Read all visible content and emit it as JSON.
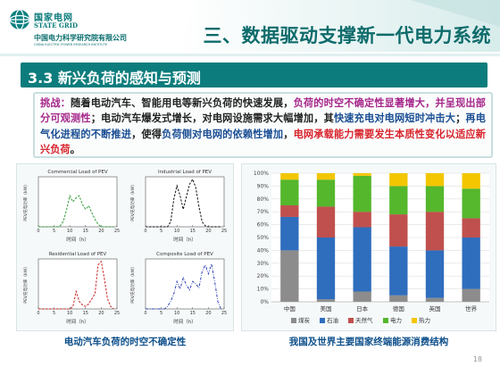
{
  "logo": {
    "cn": "国家电网",
    "en": "STATE GRID",
    "org": "中国电力科学研究院有限公司",
    "org_en": "CHINA ELECTRIC POWER RESEARCH INSTITUTE"
  },
  "header": {
    "title": "三、数据驱动支撑新一代电力系统"
  },
  "section": {
    "title": "3.3 新兴负荷的感知与预测"
  },
  "challenge": {
    "label": "挑战：",
    "p1": "随着电动汽车、智能用电等新兴负荷的快速发展，",
    "p2": "负荷的时空不确定性显著增大，并呈现出部分可观测性",
    "p3": "；电动汽车爆发式增长，对电网设施需求大幅增加，其",
    "p4": "快速充电对电网短时冲击大",
    "p5": "；",
    "p6": "再电气化进程的不断推进",
    "p7": "，使得",
    "p8": "负荷侧对电网的依赖性增加",
    "p9": "，",
    "p10": "电网承载能力需要发生本质性变化以适应新兴负荷",
    "p11": "。"
  },
  "captions": {
    "left": "电动汽车负荷的时空不确定性",
    "right": "我国及世界主要国家终端能源消费结构"
  },
  "page_number": "18",
  "chart_data": [
    {
      "type": "line",
      "title": "Commercial Load of PEV",
      "xlabel": "时间（h）",
      "ylabel": "PEV充电功率（kW）",
      "xticks": [
        "0",
        "5",
        "10",
        "15",
        "20",
        "25"
      ],
      "xlim": [
        0,
        25
      ],
      "ylim": [
        0,
        1
      ],
      "color": "#2f9a36",
      "style": "dash",
      "x": [
        0,
        1,
        2,
        3,
        4,
        5,
        6,
        7,
        8,
        9,
        10,
        11,
        12,
        13,
        14,
        15,
        16,
        17,
        18,
        19,
        20,
        21,
        22,
        23,
        24
      ],
      "values": [
        0,
        0,
        0,
        0,
        0,
        0,
        0,
        0.02,
        0.12,
        0.35,
        0.62,
        0.5,
        0.58,
        0.62,
        0.45,
        0.35,
        0.42,
        0.28,
        0.15,
        0.05,
        0,
        0,
        0,
        0,
        0
      ]
    },
    {
      "type": "line",
      "title": "Industrial Load of PEV",
      "xlabel": "时间（h）",
      "ylabel": "PEV充电功率（kW）",
      "xticks": [
        "0",
        "5",
        "10",
        "15",
        "20",
        "25"
      ],
      "xlim": [
        0,
        25
      ],
      "ylim": [
        0,
        1
      ],
      "color": "#111111",
      "style": "dash",
      "x": [
        0,
        1,
        2,
        3,
        4,
        5,
        6,
        7,
        8,
        9,
        10,
        11,
        12,
        13,
        14,
        15,
        16,
        17,
        18,
        19,
        20,
        21,
        22,
        23,
        24
      ],
      "values": [
        0,
        0,
        0,
        0,
        0,
        0,
        0,
        0,
        0.1,
        0.55,
        0.82,
        0.62,
        0.35,
        0.6,
        0.85,
        0.95,
        0.78,
        0.4,
        0.1,
        0.02,
        0,
        0,
        0,
        0,
        0
      ]
    },
    {
      "type": "line",
      "title": "Residential Load of PEV",
      "xlabel": "时间（h）",
      "ylabel": "PEV充电功率（kW）",
      "xticks": [
        "0",
        "5",
        "10",
        "15",
        "20",
        "25"
      ],
      "xlim": [
        0,
        25
      ],
      "ylim": [
        0,
        1
      ],
      "color": "#c72828",
      "style": "dash",
      "x": [
        0,
        1,
        2,
        3,
        4,
        5,
        6,
        7,
        8,
        9,
        10,
        11,
        12,
        13,
        14,
        15,
        16,
        17,
        18,
        19,
        20,
        21,
        22,
        23,
        24
      ],
      "values": [
        0,
        0,
        0,
        0,
        0,
        0,
        0,
        0,
        0,
        0,
        0,
        0.05,
        0.35,
        0.15,
        0.08,
        0.05,
        0.1,
        0.2,
        0.3,
        0.88,
        0.95,
        0.6,
        0.2,
        0.05,
        0
      ]
    },
    {
      "type": "line",
      "title": "Composite Load of PEV",
      "xlabel": "时间（h）",
      "ylabel": "PEV充电功率（kW）",
      "xticks": [
        "0",
        "5",
        "10",
        "15",
        "20",
        "25"
      ],
      "xlim": [
        0,
        25
      ],
      "ylim": [
        0,
        1
      ],
      "color": "#2b3fb5",
      "style": "dashdot",
      "x": [
        0,
        1,
        2,
        3,
        4,
        5,
        6,
        7,
        8,
        9,
        10,
        11,
        12,
        13,
        14,
        15,
        16,
        17,
        18,
        19,
        20,
        21,
        22,
        23,
        24
      ],
      "values": [
        0,
        0,
        0,
        0,
        0,
        0,
        0,
        0.05,
        0.15,
        0.3,
        0.55,
        0.4,
        0.62,
        0.48,
        0.38,
        0.55,
        0.5,
        0.42,
        0.75,
        0.88,
        0.7,
        0.9,
        0.55,
        0.15,
        0
      ]
    },
    {
      "type": "bar",
      "stacked": true,
      "categories": [
        "中国",
        "美国",
        "日本",
        "德国",
        "英国",
        "世界"
      ],
      "yticks": [
        "0%",
        "10%",
        "20%",
        "30%",
        "40%",
        "50%",
        "60%",
        "70%",
        "80%",
        "90%",
        "100%"
      ],
      "ylim": [
        0,
        100
      ],
      "grid": true,
      "legend_position": "bottom",
      "series": [
        {
          "name": "煤炭",
          "color": "#8c8c8c",
          "values": [
            40,
            2,
            8,
            5,
            3,
            10
          ]
        },
        {
          "name": "石油",
          "color": "#2f6dbd",
          "values": [
            26,
            48,
            50,
            38,
            37,
            40
          ]
        },
        {
          "name": "天然气",
          "color": "#c0504d",
          "values": [
            9,
            24,
            12,
            25,
            30,
            15
          ]
        },
        {
          "name": "电力",
          "color": "#55b72c",
          "values": [
            20,
            21,
            28,
            22,
            20,
            23
          ]
        },
        {
          "name": "热力",
          "color": "#f3c600",
          "values": [
            5,
            5,
            2,
            10,
            10,
            12
          ]
        }
      ]
    }
  ]
}
